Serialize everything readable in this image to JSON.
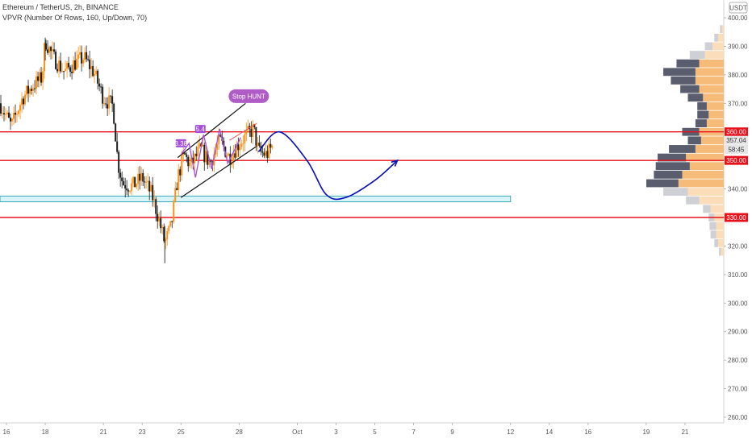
{
  "header": {
    "title": "Ethereum / TetherUS, 2h, BINANCE",
    "indicator": "VPVR (Number Of Rows, 160, Up/Down, 70)"
  },
  "currency_badge": "USDT",
  "colors": {
    "up": "#f7931a",
    "down": "#1f1f1f",
    "level_line": "#e8101a",
    "channel": "#111111",
    "forecast_curve": "#0b10b8",
    "zone_fill": "#d8f4f8",
    "zone_border": "#38a9b8",
    "bubble": "#b05cc7",
    "label": "#a44fdc",
    "vp_up": "#f6b46a",
    "vp_down": "#3c4154",
    "vp_up_light": "#fbd9b2",
    "vp_down_light": "#c6c8ce"
  },
  "chart_data": {
    "type": "candlestick",
    "title": "Ethereum / TetherUS, 2h, BINANCE",
    "y_axis": {
      "min": 257,
      "max": 404,
      "ticks": [
        260,
        270,
        280,
        290,
        300,
        310,
        320,
        330,
        340,
        350,
        360,
        370,
        380,
        390,
        400
      ],
      "tick_labels": [
        "260.00",
        "270.00",
        "280.00",
        "290.00",
        "300.00",
        "310.00",
        "320.00",
        "330.00",
        "340.00",
        "350.00",
        "360.00",
        "370.00",
        "380.00",
        "390.00",
        "400.00"
      ]
    },
    "x_axis": {
      "start": "2020-09-15T16:00",
      "end": "2020-10-23T00:00",
      "tick_labels": [
        {
          "date": "2020-09-16",
          "label": "16"
        },
        {
          "date": "2020-09-18",
          "label": "18"
        },
        {
          "date": "2020-09-21",
          "label": "21"
        },
        {
          "date": "2020-09-23",
          "label": "23"
        },
        {
          "date": "2020-09-25",
          "label": "25"
        },
        {
          "date": "2020-09-28",
          "label": "28"
        },
        {
          "date": "2020-10-01",
          "label": "Oct"
        },
        {
          "date": "2020-10-03",
          "label": "3"
        },
        {
          "date": "2020-10-05",
          "label": "5"
        },
        {
          "date": "2020-10-07",
          "label": "7"
        },
        {
          "date": "2020-10-09",
          "label": "9"
        },
        {
          "date": "2020-10-12",
          "label": "12"
        },
        {
          "date": "2020-10-14",
          "label": "14"
        },
        {
          "date": "2020-10-16",
          "label": "16"
        },
        {
          "date": "2020-10-19",
          "label": "19"
        },
        {
          "date": "2020-10-21",
          "label": "21"
        }
      ]
    },
    "price_path": [
      {
        "t": "2020-09-15T16:00",
        "p": 370
      },
      {
        "t": "2020-09-16T06:00",
        "p": 362
      },
      {
        "t": "2020-09-16T20:00",
        "p": 372
      },
      {
        "t": "2020-09-17T08:00",
        "p": 376
      },
      {
        "t": "2020-09-17T20:00",
        "p": 379
      },
      {
        "t": "2020-09-18T00:00",
        "p": 392
      },
      {
        "t": "2020-09-18T10:00",
        "p": 386
      },
      {
        "t": "2020-09-19T00:00",
        "p": 381
      },
      {
        "t": "2020-09-19T12:00",
        "p": 384
      },
      {
        "t": "2020-09-20T00:00",
        "p": 386
      },
      {
        "t": "2020-09-20T12:00",
        "p": 381
      },
      {
        "t": "2020-09-21T00:00",
        "p": 372
      },
      {
        "t": "2020-09-21T12:00",
        "p": 369
      },
      {
        "t": "2020-09-21T18:00",
        "p": 349
      },
      {
        "t": "2020-09-22T00:00",
        "p": 342
      },
      {
        "t": "2020-09-22T12:00",
        "p": 341
      },
      {
        "t": "2020-09-23T00:00",
        "p": 344
      },
      {
        "t": "2020-09-23T12:00",
        "p": 338
      },
      {
        "t": "2020-09-23T20:00",
        "p": 330
      },
      {
        "t": "2020-09-24T04:00",
        "p": 321
      },
      {
        "t": "2020-09-24T12:00",
        "p": 327
      },
      {
        "t": "2020-09-24T20:00",
        "p": 344
      },
      {
        "t": "2020-09-25T04:00",
        "p": 352
      },
      {
        "t": "2020-09-25T12:00",
        "p": 348
      },
      {
        "t": "2020-09-26T00:00",
        "p": 354
      },
      {
        "t": "2020-09-26T12:00",
        "p": 349
      },
      {
        "t": "2020-09-27T00:00",
        "p": 357
      },
      {
        "t": "2020-09-27T12:00",
        "p": 351
      },
      {
        "t": "2020-09-28T00:00",
        "p": 356
      },
      {
        "t": "2020-09-28T10:00",
        "p": 359
      },
      {
        "t": "2020-09-28T18:00",
        "p": 361
      },
      {
        "t": "2020-09-29T00:00",
        "p": 353
      },
      {
        "t": "2020-09-29T10:00",
        "p": 352
      },
      {
        "t": "2020-09-29T18:00",
        "p": 355
      }
    ],
    "price_extremes": {
      "high": 393.0,
      "low": 314.0
    },
    "levels": [
      {
        "price": 360,
        "label": "360.00"
      },
      {
        "price": 350,
        "label": "350.00"
      },
      {
        "price": 330,
        "label": "330.00"
      }
    ],
    "current_price": {
      "price": 357.04,
      "label": "357.04",
      "countdown": "58:45"
    },
    "support_zone": {
      "low": 335.5,
      "high": 337.5,
      "start": "2020-09-15T16:00",
      "end": "2020-10-12T00:00"
    },
    "rising_channel": {
      "upper": [
        {
          "t": "2020-09-24T20:00",
          "p": 351
        },
        {
          "t": "2020-09-28T08:00",
          "p": 370
        }
      ],
      "lower": [
        {
          "t": "2020-09-25T00:00",
          "p": 337
        },
        {
          "t": "2020-09-28T22:00",
          "p": 355
        }
      ],
      "mid": [
        {
          "t": "2020-09-27T12:00",
          "p": 357
        },
        {
          "t": "2020-09-28T22:00",
          "p": 363
        }
      ]
    },
    "wave_path": [
      {
        "t": "2020-09-25T00:00",
        "p": 352
      },
      {
        "t": "2020-09-25T10:00",
        "p": 356
      },
      {
        "t": "2020-09-25T18:00",
        "p": 344
      },
      {
        "t": "2020-09-26T04:00",
        "p": 359
      },
      {
        "t": "2020-09-26T14:00",
        "p": 347
      },
      {
        "t": "2020-09-27T00:00",
        "p": 361
      },
      {
        "t": "2020-09-27T10:00",
        "p": 349
      },
      {
        "t": "2020-09-28T02:00",
        "p": 358
      }
    ],
    "forecast_path": [
      {
        "t": "2020-09-29T00:00",
        "p": 353
      },
      {
        "t": "2020-09-30T02:00",
        "p": 360
      },
      {
        "t": "2020-10-01T12:00",
        "p": 350
      },
      {
        "t": "2020-10-02T12:00",
        "p": 338
      },
      {
        "t": "2020-10-03T12:00",
        "p": 337
      },
      {
        "t": "2020-10-05T00:00",
        "p": 343
      },
      {
        "t": "2020-10-06T04:00",
        "p": 350
      }
    ],
    "annotations": [
      {
        "text": "Stop HUNT",
        "t": "2020-09-28T12:00",
        "p": 372.5,
        "style": "bubble"
      },
      {
        "text": "3.38",
        "t": "2020-09-25T00:00",
        "p": 356,
        "style": "tag"
      },
      {
        "text": "5.4",
        "t": "2020-09-26T00:00",
        "p": 361,
        "style": "tag"
      }
    ],
    "volume_profile": {
      "note": "VPVR rows",
      "value_area": [
        340,
        385
      ],
      "rows": [
        {
          "p": 318,
          "up": 3,
          "down": 2
        },
        {
          "p": 321,
          "up": 6,
          "down": 4
        },
        {
          "p": 324,
          "up": 8,
          "down": 6
        },
        {
          "p": 327,
          "up": 8,
          "down": 7
        },
        {
          "p": 330,
          "up": 10,
          "down": 6
        },
        {
          "p": 333,
          "up": 14,
          "down": 8
        },
        {
          "p": 336,
          "up": 26,
          "down": 14
        },
        {
          "p": 339,
          "up": 38,
          "down": 26
        },
        {
          "p": 342,
          "up": 48,
          "down": 34
        },
        {
          "p": 345,
          "up": 44,
          "down": 30
        },
        {
          "p": 348,
          "up": 36,
          "down": 36
        },
        {
          "p": 351,
          "up": 40,
          "down": 30
        },
        {
          "p": 354,
          "up": 30,
          "down": 28
        },
        {
          "p": 357,
          "up": 24,
          "down": 14
        },
        {
          "p": 360,
          "up": 26,
          "down": 18
        },
        {
          "p": 363,
          "up": 18,
          "down": 12
        },
        {
          "p": 366,
          "up": 16,
          "down": 12
        },
        {
          "p": 369,
          "up": 18,
          "down": 10
        },
        {
          "p": 372,
          "up": 22,
          "down": 16
        },
        {
          "p": 375,
          "up": 26,
          "down": 20
        },
        {
          "p": 378,
          "up": 30,
          "down": 26
        },
        {
          "p": 381,
          "up": 30,
          "down": 34
        },
        {
          "p": 384,
          "up": 26,
          "down": 24
        },
        {
          "p": 387,
          "up": 20,
          "down": 16
        },
        {
          "p": 390,
          "up": 12,
          "down": 8
        },
        {
          "p": 393,
          "up": 6,
          "down": 4
        },
        {
          "p": 396,
          "up": 2,
          "down": 2
        }
      ]
    }
  }
}
